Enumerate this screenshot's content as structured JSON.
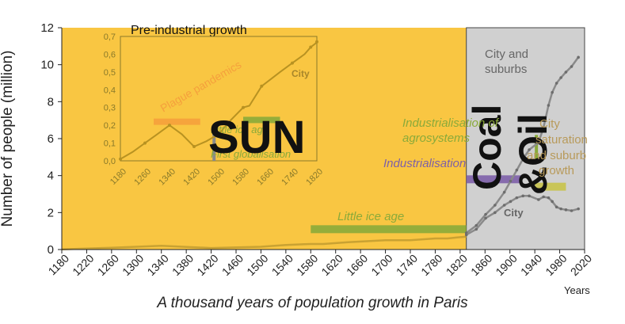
{
  "chart_data": {
    "type": "line",
    "title": "",
    "caption": "A thousand years of population growth in Paris",
    "ylabel": "Number of people (million)",
    "xlabel": "Years",
    "xlim": [
      1180,
      2020
    ],
    "ylim": [
      0,
      12
    ],
    "x_ticks": [
      "1180",
      "1220",
      "1260",
      "1300",
      "1340",
      "1380",
      "1420",
      "1460",
      "1500",
      "1540",
      "1580",
      "1620",
      "1660",
      "1700",
      "1740",
      "1780",
      "1820",
      "1860",
      "1900",
      "1940",
      "1980",
      "2020"
    ],
    "y_ticks": [
      "0",
      "2",
      "4",
      "6",
      "8",
      "10",
      "12"
    ],
    "grid": false,
    "series": [
      {
        "name": "",
        "color": "#c9a232",
        "x": [
          1180,
          1260,
          1340,
          1420,
          1500,
          1540,
          1580,
          1600,
          1640,
          1700,
          1740,
          1780,
          1800,
          1815,
          1830
        ],
        "y": [
          0.01,
          0.1,
          0.2,
          0.08,
          0.15,
          0.25,
          0.3,
          0.3,
          0.4,
          0.5,
          0.5,
          0.6,
          0.6,
          0.65,
          0.7
        ]
      },
      {
        "name": "City and suburbs",
        "color": "#8a8a8a",
        "x": [
          1830,
          1846,
          1861,
          1876,
          1891,
          1901,
          1911,
          1921,
          1931,
          1946,
          1954,
          1962,
          1968,
          1975,
          1982,
          1990,
          1999,
          2010
        ],
        "y": [
          0.9,
          1.3,
          1.9,
          2.4,
          3.1,
          3.7,
          4.3,
          4.9,
          5.4,
          5.8,
          6.6,
          7.8,
          8.5,
          9.0,
          9.3,
          9.6,
          9.9,
          10.4
        ]
      },
      {
        "name": "City",
        "color": "#8a8a8a",
        "x": [
          1830,
          1846,
          1861,
          1876,
          1891,
          1901,
          1911,
          1921,
          1931,
          1946,
          1954,
          1962,
          1968,
          1975,
          1982,
          1990,
          1999,
          2010
        ],
        "y": [
          0.8,
          1.1,
          1.7,
          2.0,
          2.4,
          2.6,
          2.8,
          2.9,
          2.9,
          2.7,
          2.85,
          2.8,
          2.6,
          2.3,
          2.2,
          2.15,
          2.1,
          2.2
        ]
      }
    ],
    "bands": [
      {
        "label": "Little ice age",
        "from": 1580,
        "to": 1830,
        "y": 1.1,
        "color": "#8aaa3a"
      },
      {
        "label": "Industrialisation",
        "from": 1830,
        "to": 1920,
        "y": 3.8,
        "color": "#7d5fa8"
      },
      {
        "label": "Industrialisation of agrosystems",
        "from": 1940,
        "to": 1990,
        "y": 3.4,
        "color": "#c8c34a"
      },
      {
        "label": "City saturation and suburb growth",
        "from": 1940,
        "to": 1945,
        "y": 5.5,
        "color": "#8aaa3a"
      }
    ],
    "regions": [
      {
        "label": "SUN",
        "from": 1180,
        "to": 1830,
        "color": "#f9c642"
      },
      {
        "label_lines": [
          "Coal",
          "&Oil"
        ],
        "from": 1830,
        "to": 2020,
        "color": "#d0d0d0"
      }
    ],
    "region_label_sun": "SUN",
    "region_label_coal": "Coal",
    "region_label_oil": "&Oil",
    "labels": {
      "city_and_suburbs": [
        "City and",
        "suburbs"
      ],
      "city": "City",
      "little_ice_age": "Little ice age",
      "industrialisation": "Industrialisation",
      "industrialisation_agro": [
        "Industrialisation of",
        "agrosystems"
      ],
      "saturation": [
        "City",
        "saturation",
        "and suburb",
        "growth"
      ]
    },
    "inset": {
      "title": "Pre-industrial growth",
      "xlim": [
        1180,
        1820
      ],
      "ylim": [
        0,
        0.7
      ],
      "x_ticks": [
        "1180",
        "1260",
        "1340",
        "1420",
        "1500",
        "1580",
        "1660",
        "1740",
        "1820"
      ],
      "y_ticks": [
        "0,0",
        "0,1",
        "0,2",
        "0,3",
        "0,4",
        "0,5",
        "0,6",
        "0,7"
      ],
      "series": {
        "name": "City",
        "x": [
          1180,
          1220,
          1260,
          1300,
          1340,
          1380,
          1420,
          1460,
          1500,
          1540,
          1580,
          1600,
          1640,
          1700,
          1740,
          1780,
          1800,
          1815,
          1820
        ],
        "y": [
          0.01,
          0.05,
          0.1,
          0.15,
          0.2,
          0.15,
          0.08,
          0.11,
          0.15,
          0.23,
          0.3,
          0.31,
          0.42,
          0.5,
          0.55,
          0.6,
          0.64,
          0.66,
          0.67
        ]
      },
      "bands": [
        {
          "label": "Plague pandemics",
          "from": 1340,
          "to": 1440,
          "y": 0.22,
          "color": "#f5a03c"
        },
        {
          "label": "Little ice age",
          "from": 1480,
          "to": 1820,
          "y": 0.23,
          "color": "#8aaa3a"
        },
        {
          "label": "First globalisation",
          "from": 1480,
          "to": 1490,
          "y": 0.1,
          "color": "#8a8a8a"
        }
      ],
      "labels": {
        "plague": "Plague pandemics",
        "little_ice_age": "Little ice age",
        "first_globalisation": "First globalisation",
        "city": "City"
      }
    }
  }
}
